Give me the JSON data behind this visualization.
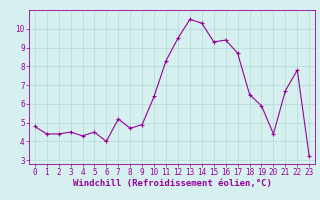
{
  "x": [
    0,
    1,
    2,
    3,
    4,
    5,
    6,
    7,
    8,
    9,
    10,
    11,
    12,
    13,
    14,
    15,
    16,
    17,
    18,
    19,
    20,
    21,
    22,
    23
  ],
  "y": [
    4.8,
    4.4,
    4.4,
    4.5,
    4.3,
    4.5,
    4.0,
    5.2,
    4.7,
    4.9,
    6.4,
    8.3,
    9.5,
    10.5,
    10.3,
    9.3,
    9.4,
    8.7,
    6.5,
    5.9,
    4.4,
    6.7,
    7.8,
    3.2
  ],
  "line_color": "#990099",
  "marker": "+",
  "marker_size": 3,
  "bg_color": "#d6f0f0",
  "grid_color": "#b0dada",
  "xlabel": "Windchill (Refroidissement éolien,°C)",
  "xlim": [
    -0.5,
    23.5
  ],
  "ylim": [
    2.8,
    11.0
  ],
  "yticks": [
    3,
    4,
    5,
    6,
    7,
    8,
    9,
    10
  ],
  "xticks": [
    0,
    1,
    2,
    3,
    4,
    5,
    6,
    7,
    8,
    9,
    10,
    11,
    12,
    13,
    14,
    15,
    16,
    17,
    18,
    19,
    20,
    21,
    22,
    23
  ],
  "tick_label_fontsize": 5.5,
  "xlabel_fontsize": 6.5
}
